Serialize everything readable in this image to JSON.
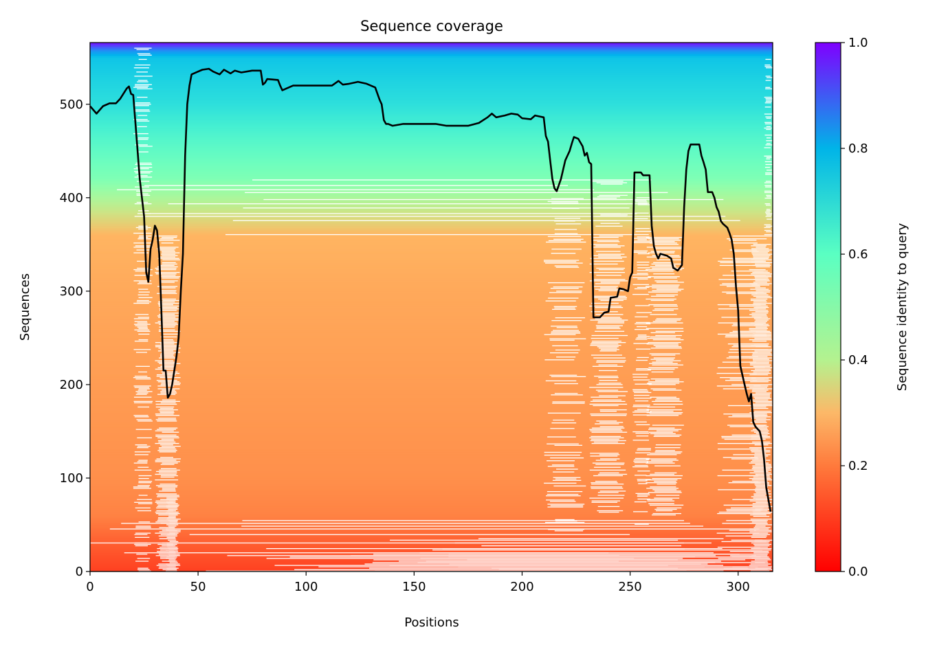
{
  "chart_data": {
    "type": "heatmap",
    "title": "Sequence coverage",
    "xlabel": "Positions",
    "ylabel": "Sequences",
    "xlim": [
      0,
      316
    ],
    "ylim": [
      0,
      566
    ],
    "xticks": [
      0,
      50,
      100,
      150,
      200,
      250,
      300
    ],
    "yticks": [
      0,
      100,
      200,
      300,
      400,
      500
    ],
    "grid": false,
    "colorbar": {
      "label": "Sequence identity to query",
      "colormap": "rainbow_r",
      "range": [
        0.0,
        1.0
      ],
      "ticks": [
        "0.0",
        "0.2",
        "0.4",
        "0.6",
        "0.8",
        "1.0"
      ]
    },
    "identity_by_sequence_row": {
      "rows": [
        0,
        30,
        60,
        100,
        200,
        300,
        360,
        380,
        420,
        500,
        550,
        557,
        566
      ],
      "identity": [
        0.08,
        0.12,
        0.17,
        0.19,
        0.21,
        0.23,
        0.25,
        0.33,
        0.5,
        0.66,
        0.72,
        0.8,
        0.98
      ]
    },
    "coverage_line": {
      "color": "#000000",
      "positions": [
        0,
        3,
        6,
        9,
        12,
        14,
        17,
        18,
        19,
        20,
        21,
        23,
        25,
        26,
        27,
        28,
        29,
        30,
        31,
        32,
        33,
        34,
        35,
        36,
        37,
        38,
        40,
        41,
        42,
        43,
        44,
        45,
        46,
        47,
        50,
        52,
        55,
        57,
        60,
        62,
        65,
        67,
        70,
        75,
        79,
        80,
        81,
        82,
        87,
        88,
        89,
        92,
        94,
        110,
        112,
        115,
        117,
        120,
        124,
        128,
        132,
        134,
        135,
        136,
        137,
        138,
        140,
        145,
        150,
        160,
        165,
        175,
        180,
        184,
        186,
        188,
        192,
        195,
        198,
        200,
        204,
        206,
        208,
        210,
        211,
        212,
        213,
        214,
        215,
        216,
        218,
        220,
        222,
        223,
        224,
        226,
        228,
        229,
        230,
        231,
        232,
        233,
        236,
        238,
        240,
        241,
        244,
        245,
        247,
        249,
        250,
        251,
        252,
        255,
        256,
        259,
        260,
        261,
        262,
        263,
        264,
        267,
        269,
        270,
        272,
        273,
        274,
        275,
        276,
        277,
        278,
        282,
        283,
        284,
        285,
        286,
        288,
        289,
        290,
        291,
        292,
        293,
        295,
        296,
        297,
        298,
        299,
        300,
        301,
        302,
        303,
        304,
        305,
        306,
        307,
        308,
        310,
        311,
        312,
        313,
        315
      ],
      "values": [
        498,
        490,
        498,
        501,
        501,
        506,
        517,
        519,
        511,
        510,
        480,
        420,
        380,
        320,
        310,
        345,
        355,
        370,
        365,
        340,
        280,
        215,
        215,
        186,
        190,
        200,
        230,
        250,
        300,
        340,
        445,
        500,
        520,
        532,
        535,
        537,
        538,
        535,
        532,
        537,
        533,
        536,
        534,
        536,
        536,
        521,
        523,
        527,
        526,
        520,
        515,
        518,
        520,
        520,
        520,
        525,
        521,
        522,
        524,
        522,
        518,
        505,
        500,
        483,
        479,
        479,
        477,
        479,
        479,
        479,
        477,
        477,
        480,
        486,
        490,
        486,
        488,
        490,
        489,
        485,
        484,
        488,
        487,
        486,
        466,
        460,
        440,
        420,
        410,
        407,
        420,
        440,
        450,
        458,
        465,
        463,
        455,
        445,
        448,
        438,
        436,
        272,
        272,
        277,
        278,
        293,
        294,
        303,
        302,
        300,
        315,
        320,
        427,
        427,
        424,
        424,
        370,
        348,
        340,
        335,
        340,
        338,
        335,
        325,
        322,
        325,
        328,
        390,
        430,
        450,
        457,
        457,
        445,
        438,
        430,
        406,
        406,
        400,
        390,
        385,
        375,
        372,
        368,
        362,
        355,
        340,
        305,
        280,
        220,
        210,
        200,
        190,
        182,
        190,
        160,
        155,
        150,
        140,
        120,
        90,
        64
      ]
    }
  }
}
